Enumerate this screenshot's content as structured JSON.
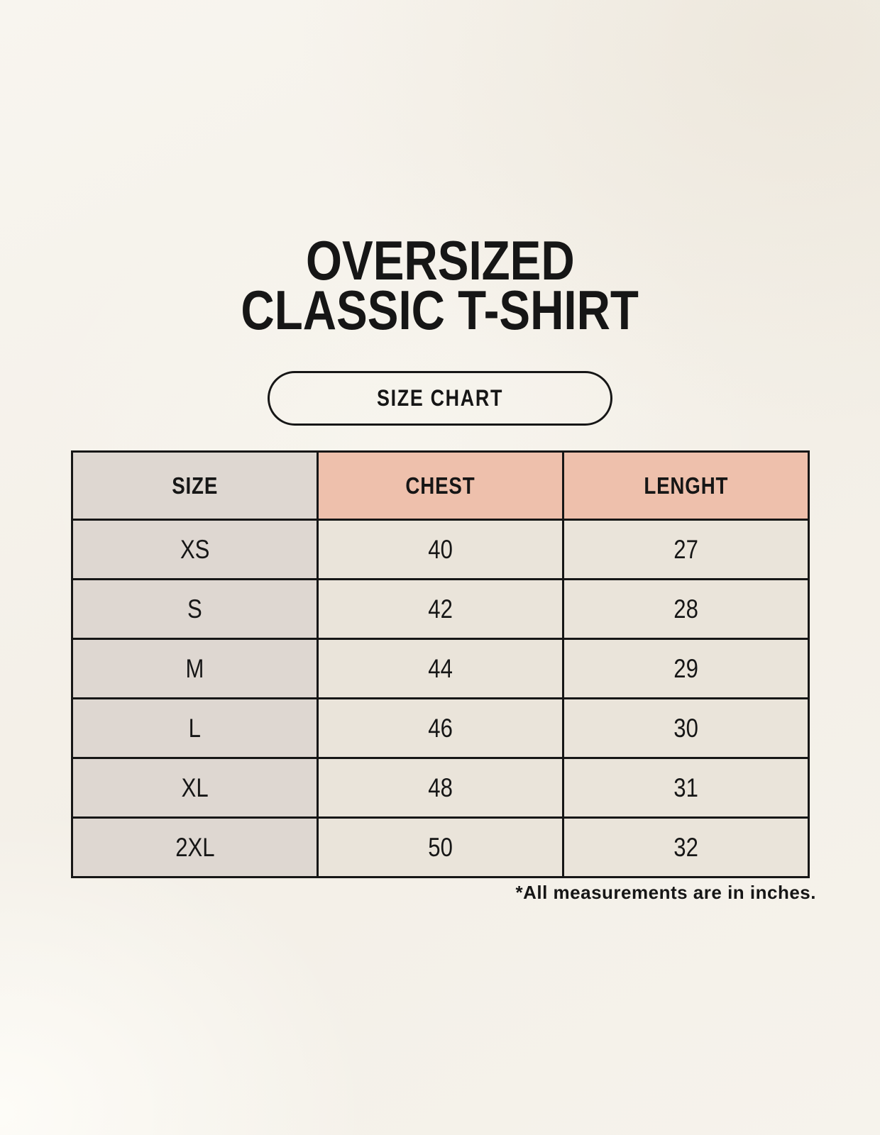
{
  "page": {
    "title_line1": "OVERSIZED",
    "title_line2": "CLASSIC T-SHIRT",
    "size_chart_button_label": "SIZE CHART",
    "footnote": "*All measurements are in inches."
  },
  "table": {
    "headers": {
      "size": "SIZE",
      "chest": "CHEST",
      "length": "LENGHT"
    },
    "rows": [
      {
        "size": "XS",
        "chest": "40",
        "length": "27"
      },
      {
        "size": "S",
        "chest": "42",
        "length": "28"
      },
      {
        "size": "M",
        "chest": "44",
        "length": "29"
      },
      {
        "size": "L",
        "chest": "46",
        "length": "30"
      },
      {
        "size": "XL",
        "chest": "48",
        "length": "31"
      },
      {
        "size": "2XL",
        "chest": "50",
        "length": "32"
      }
    ]
  },
  "colors": {
    "background": "#f5f2eb",
    "size_column_bg": "#ded7d1",
    "header_accent_bg": "#eec0ac",
    "data_cell_bg": "#eae4da",
    "border": "#161616",
    "text": "#161616"
  },
  "chart_data": {
    "type": "table",
    "title": "OVERSIZED CLASSIC T-SHIRT",
    "subtitle": "SIZE CHART",
    "columns": [
      "SIZE",
      "CHEST",
      "LENGHT"
    ],
    "rows": [
      [
        "XS",
        40,
        27
      ],
      [
        "S",
        42,
        28
      ],
      [
        "M",
        44,
        29
      ],
      [
        "L",
        46,
        30
      ],
      [
        "XL",
        48,
        31
      ],
      [
        "2XL",
        50,
        32
      ]
    ],
    "units": "inches",
    "note": "*All measurements are in inches."
  }
}
